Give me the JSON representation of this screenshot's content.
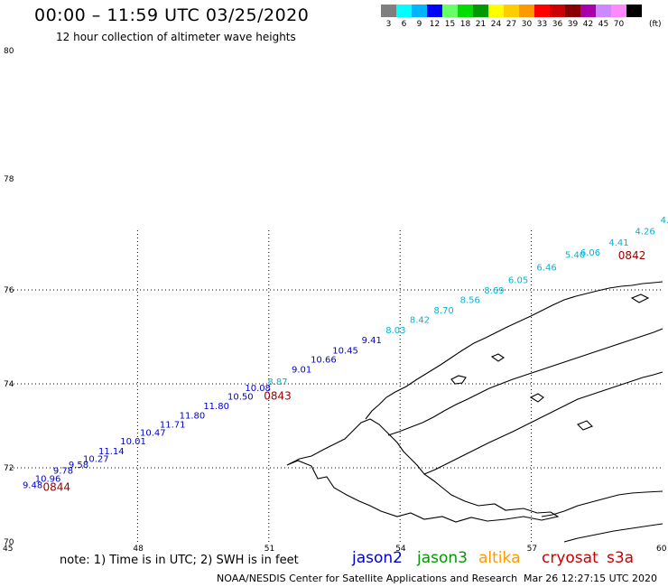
{
  "header": {
    "title": "00:00 – 11:59 UTC 03/25/2020",
    "subtitle": "12 hour collection of altimeter wave heights"
  },
  "colorbar": {
    "unit": "(ft)",
    "entries": [
      {
        "label": "3",
        "color": "#7f7f7f"
      },
      {
        "label": "6",
        "color": "#00ffff"
      },
      {
        "label": "9",
        "color": "#00b4ff"
      },
      {
        "label": "12",
        "color": "#0000ff"
      },
      {
        "label": "15",
        "color": "#66ff66"
      },
      {
        "label": "18",
        "color": "#00dd00"
      },
      {
        "label": "21",
        "color": "#009900"
      },
      {
        "label": "24",
        "color": "#ffff00"
      },
      {
        "label": "27",
        "color": "#ffcc00"
      },
      {
        "label": "30",
        "color": "#ff9900"
      },
      {
        "label": "33",
        "color": "#ff0000"
      },
      {
        "label": "36",
        "color": "#cc0000"
      },
      {
        "label": "39",
        "color": "#880000"
      },
      {
        "label": "42",
        "color": "#aa00aa"
      },
      {
        "label": "45",
        "color": "#cc88ff"
      },
      {
        "label": "70",
        "color": "#ff88ff"
      },
      {
        "label": "",
        "color": "#000000"
      }
    ]
  },
  "map": {
    "lon_range": [
      45,
      60
    ],
    "lat_ticks": [
      "80",
      "78",
      "76",
      "74",
      "72",
      "70"
    ],
    "lon_ticks": [
      "45",
      "48",
      "51",
      "54",
      "57",
      "60"
    ],
    "grid_lons": [
      48,
      51,
      54,
      57
    ],
    "grid_lats": [
      76,
      74,
      72
    ],
    "track_colors": {
      "dark": "#0000cc",
      "light": "#00b4dd",
      "time": "#990000"
    },
    "wave_heights": [
      {
        "value": "9.48",
        "lon": 45.6,
        "lat": 71.45,
        "tone": "dark"
      },
      {
        "value": "10.96",
        "lon": 45.95,
        "lat": 71.62,
        "tone": "dark"
      },
      {
        "value": "9.78",
        "lon": 46.3,
        "lat": 71.84,
        "tone": "dark"
      },
      {
        "value": "9.58",
        "lon": 46.65,
        "lat": 72.0,
        "tone": "dark"
      },
      {
        "value": "10.27",
        "lon": 47.05,
        "lat": 72.14,
        "tone": "dark"
      },
      {
        "value": "11.14",
        "lon": 47.4,
        "lat": 72.32,
        "tone": "dark"
      },
      {
        "value": "10.01",
        "lon": 47.9,
        "lat": 72.56,
        "tone": "dark"
      },
      {
        "value": "10.47",
        "lon": 48.35,
        "lat": 72.76,
        "tone": "dark"
      },
      {
        "value": "11.71",
        "lon": 48.8,
        "lat": 72.96,
        "tone": "dark"
      },
      {
        "value": "11.80",
        "lon": 49.25,
        "lat": 73.17,
        "tone": "dark"
      },
      {
        "value": "11.80",
        "lon": 49.8,
        "lat": 73.4,
        "tone": "dark"
      },
      {
        "value": "10.50",
        "lon": 50.35,
        "lat": 73.62,
        "tone": "dark"
      },
      {
        "value": "10.08",
        "lon": 50.75,
        "lat": 73.83,
        "tone": "dark"
      },
      {
        "value": "8.87",
        "lon": 51.2,
        "lat": 73.98,
        "tone": "light"
      },
      {
        "value": "9.01",
        "lon": 51.75,
        "lat": 74.24,
        "tone": "dark"
      },
      {
        "value": "10.66",
        "lon": 52.25,
        "lat": 74.45,
        "tone": "dark"
      },
      {
        "value": "10.45",
        "lon": 52.75,
        "lat": 74.64,
        "tone": "dark"
      },
      {
        "value": "9.41",
        "lon": 53.35,
        "lat": 74.87,
        "tone": "dark"
      },
      {
        "value": "8.03",
        "lon": 53.9,
        "lat": 75.08,
        "tone": "light"
      },
      {
        "value": "8.42",
        "lon": 54.45,
        "lat": 75.3,
        "tone": "light"
      },
      {
        "value": "8.70",
        "lon": 55.0,
        "lat": 75.5,
        "tone": "light"
      },
      {
        "value": "8.56",
        "lon": 55.6,
        "lat": 75.72,
        "tone": "light"
      },
      {
        "value": "8.69",
        "lon": 56.15,
        "lat": 75.92,
        "tone": "light"
      },
      {
        "value": "6.05",
        "lon": 56.7,
        "lat": 76.12,
        "tone": "light"
      },
      {
        "value": "6.46",
        "lon": 57.35,
        "lat": 76.35,
        "tone": "light"
      },
      {
        "value": "5.40",
        "lon": 58.0,
        "lat": 76.58,
        "tone": "light"
      },
      {
        "value": "6.06",
        "lon": 58.35,
        "lat": 76.62,
        "tone": "light"
      },
      {
        "value": "4.41",
        "lon": 59.0,
        "lat": 76.8,
        "tone": "light"
      },
      {
        "value": "4.26",
        "lon": 59.6,
        "lat": 77.0,
        "tone": "light"
      },
      {
        "value": "4.",
        "lon": 60.05,
        "lat": 77.2,
        "tone": "light"
      }
    ],
    "times": [
      {
        "value": "0844",
        "lon": 46.15,
        "lat": 71.38
      },
      {
        "value": "0843",
        "lon": 51.2,
        "lat": 73.62
      },
      {
        "value": "0842",
        "lon": 59.3,
        "lat": 76.55
      }
    ]
  },
  "footer": {
    "note": "note:  1) Time is in UTC;  2) SWH is in feet",
    "satellites": [
      {
        "name": "jason2",
        "color": "#0000cc"
      },
      {
        "name": "jason3",
        "color": "#009900"
      },
      {
        "name": "altika",
        "color": "#ff9900"
      },
      {
        "name": "cryosat",
        "color": "#cc0000"
      },
      {
        "name": "s3a",
        "color": "#cc0000"
      }
    ],
    "credit": "NOAA/NESDIS Center for Satellite Applications and Research",
    "timestamp": "Mar 26 12:27:15 UTC 2020"
  }
}
